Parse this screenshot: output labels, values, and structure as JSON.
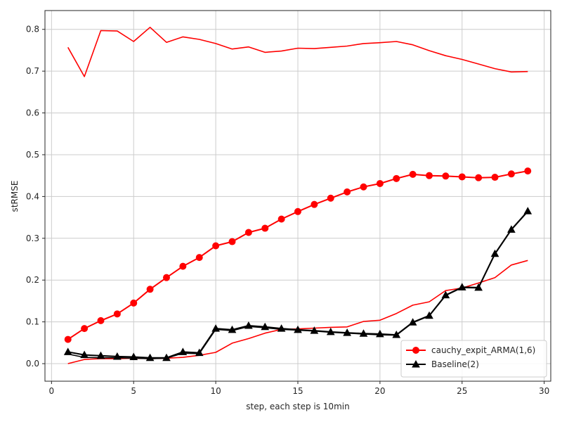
{
  "chart_data": {
    "type": "line",
    "xlabel": "step, each step is 10min",
    "ylabel": "stRMSE",
    "xlim": [
      -0.4,
      30.4
    ],
    "ylim": [
      -0.042,
      0.845
    ],
    "xticks": [
      0,
      5,
      10,
      15,
      20,
      25,
      30
    ],
    "xtick_labels": [
      "0",
      "5",
      "10",
      "15",
      "20",
      "25",
      "30"
    ],
    "yticks": [
      0.0,
      0.1,
      0.2,
      0.3,
      0.4,
      0.5,
      0.6,
      0.7,
      0.8
    ],
    "ytick_labels": [
      "0.0",
      "0.1",
      "0.2",
      "0.3",
      "0.4",
      "0.5",
      "0.6",
      "0.7",
      "0.8"
    ],
    "grid": true,
    "legend_position": "lower right",
    "x": [
      1,
      2,
      3,
      4,
      5,
      6,
      7,
      8,
      9,
      10,
      11,
      12,
      13,
      14,
      15,
      16,
      17,
      18,
      19,
      20,
      21,
      22,
      23,
      24,
      25,
      26,
      27,
      28,
      29
    ],
    "series": [
      {
        "name": "cauchy_expit_ARMA(1,6)",
        "color": "#ff0000",
        "marker": "circle",
        "show_in_legend": true,
        "values": [
          0.058,
          0.084,
          0.103,
          0.119,
          0.145,
          0.178,
          0.206,
          0.233,
          0.254,
          0.282,
          0.292,
          0.314,
          0.324,
          0.346,
          0.364,
          0.381,
          0.396,
          0.411,
          0.423,
          0.431,
          0.443,
          0.453,
          0.45,
          0.449,
          0.447,
          0.445,
          0.446,
          0.454,
          0.461
        ]
      },
      {
        "name": "",
        "color": "#ff0000",
        "marker": "none",
        "show_in_legend": false,
        "values": [
          0.757,
          0.687,
          0.797,
          0.796,
          0.771,
          0.805,
          0.769,
          0.782,
          0.776,
          0.766,
          0.753,
          0.758,
          0.745,
          0.748,
          0.755,
          0.754,
          0.757,
          0.76,
          0.766,
          0.768,
          0.771,
          0.763,
          0.749,
          0.737,
          0.728,
          0.717,
          0.706,
          0.698,
          0.699
        ]
      },
      {
        "name": "",
        "color": "#ff0000",
        "marker": "none",
        "show_in_legend": false,
        "values": [
          0.0,
          0.01,
          0.012,
          0.012,
          0.013,
          0.012,
          0.013,
          0.015,
          0.02,
          0.027,
          0.049,
          0.06,
          0.073,
          0.082,
          0.083,
          0.085,
          0.087,
          0.088,
          0.101,
          0.104,
          0.12,
          0.14,
          0.148,
          0.175,
          0.181,
          0.193,
          0.206,
          0.236,
          0.247
        ]
      },
      {
        "name": "",
        "color": "#000000",
        "marker": "none",
        "show_in_legend": false,
        "values": [
          0.023,
          0.015,
          0.014,
          0.014,
          0.013,
          0.012,
          0.013,
          0.025,
          0.024,
          0.082,
          0.079,
          0.089,
          0.086,
          0.082,
          0.08,
          0.078,
          0.075,
          0.073,
          0.071,
          0.069,
          0.068,
          0.098,
          0.114,
          0.163,
          0.182,
          0.181,
          0.262,
          0.32,
          0.364
        ]
      },
      {
        "name": "Baseline(2)",
        "color": "#000000",
        "marker": "triangle",
        "show_in_legend": true,
        "values": [
          0.028,
          0.021,
          0.019,
          0.017,
          0.016,
          0.014,
          0.014,
          0.028,
          0.026,
          0.084,
          0.081,
          0.091,
          0.088,
          0.084,
          0.081,
          0.079,
          0.076,
          0.074,
          0.072,
          0.071,
          0.069,
          0.099,
          0.115,
          0.164,
          0.183,
          0.182,
          0.263,
          0.321,
          0.365
        ]
      }
    ]
  }
}
